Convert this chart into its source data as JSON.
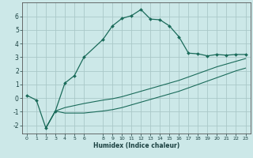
{
  "xlabel": "Humidex (Indice chaleur)",
  "ylabel": "",
  "background_color": "#cce8e8",
  "grid_color": "#aac8c8",
  "line_color": "#1a6b5a",
  "xlim": [
    -0.5,
    23.5
  ],
  "ylim": [
    -2.6,
    7.0
  ],
  "x_ticks": [
    0,
    1,
    2,
    3,
    4,
    5,
    6,
    8,
    9,
    10,
    11,
    12,
    13,
    14,
    15,
    16,
    17,
    18,
    19,
    20,
    21,
    22,
    23
  ],
  "y_ticks": [
    -2,
    -1,
    0,
    1,
    2,
    3,
    4,
    5,
    6
  ],
  "line1_x": [
    0,
    1,
    2,
    3,
    4,
    5,
    6,
    8,
    9,
    10,
    11,
    12,
    13,
    14,
    15,
    16,
    17,
    18,
    19,
    20,
    21,
    22,
    23
  ],
  "line1_y": [
    0.2,
    -0.15,
    -2.2,
    -0.95,
    1.1,
    1.65,
    3.0,
    4.3,
    5.3,
    5.85,
    6.05,
    6.5,
    5.8,
    5.75,
    5.3,
    4.5,
    3.3,
    3.25,
    3.1,
    3.2,
    3.15,
    3.2,
    3.2
  ],
  "line2_x": [
    2,
    3,
    4,
    5,
    6,
    8,
    9,
    10,
    11,
    12,
    13,
    14,
    15,
    16,
    17,
    18,
    19,
    20,
    21,
    22,
    23
  ],
  "line2_y": [
    -2.2,
    -0.95,
    -0.7,
    -0.55,
    -0.4,
    -0.15,
    -0.05,
    0.1,
    0.3,
    0.5,
    0.7,
    0.9,
    1.1,
    1.3,
    1.55,
    1.8,
    2.05,
    2.3,
    2.5,
    2.7,
    2.9
  ],
  "line3_x": [
    2,
    3,
    4,
    5,
    6,
    8,
    9,
    10,
    11,
    12,
    13,
    14,
    15,
    16,
    17,
    18,
    19,
    20,
    21,
    22,
    23
  ],
  "line3_y": [
    -2.2,
    -0.95,
    -1.1,
    -1.1,
    -1.1,
    -0.95,
    -0.85,
    -0.7,
    -0.5,
    -0.3,
    -0.1,
    0.1,
    0.3,
    0.5,
    0.75,
    1.0,
    1.25,
    1.5,
    1.75,
    2.0,
    2.2
  ]
}
